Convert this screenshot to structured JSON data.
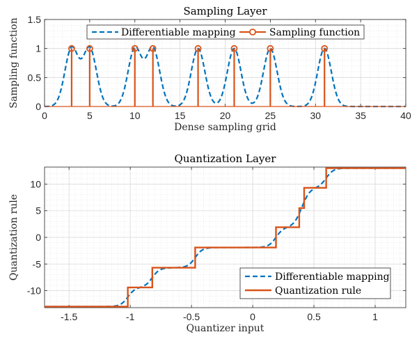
{
  "colors": {
    "blue": "#0072BD",
    "orange": "#D95319"
  },
  "chart_data": [
    {
      "type": "line",
      "title": "Sampling Layer",
      "xlabel": "Dense sampling grid",
      "ylabel": "Sampling function",
      "xlim": [
        0,
        40
      ],
      "ylim": [
        0,
        1.5
      ],
      "xticks": [
        0,
        5,
        10,
        15,
        20,
        25,
        30,
        35,
        40
      ],
      "xtick_labels": [
        "0",
        "5",
        "10",
        "15",
        "20",
        "25",
        "30",
        "35",
        "40"
      ],
      "yticks": [
        0,
        0.5,
        1,
        1.5
      ],
      "ytick_labels": [
        "0",
        "0.5",
        "1",
        "1.5"
      ],
      "grid": true,
      "legend_position": "top-center-horizontal",
      "legend": [
        "Differentiable mapping",
        "Sampling function"
      ],
      "series": [
        {
          "name": "Differentiable mapping",
          "style": "dashed",
          "kind": "gaussian-sum",
          "centers": [
            3,
            5,
            10,
            12,
            17,
            21,
            25,
            31
          ],
          "peak": 1,
          "sigma": 0.75
        },
        {
          "name": "Sampling function",
          "style": "stem",
          "x": [
            3,
            5,
            10,
            12,
            17,
            21,
            25,
            31
          ],
          "y": [
            1,
            1,
            1,
            1,
            1,
            1,
            1,
            1
          ]
        }
      ]
    },
    {
      "type": "line",
      "title": "Quantization Layer",
      "xlabel": "Quantizer input",
      "ylabel": "Quantization rule",
      "xlim": [
        -1.7,
        1.25
      ],
      "ylim": [
        -13.2,
        13.2
      ],
      "xticks": [
        -1.5,
        -1,
        -0.5,
        0,
        0.5,
        1
      ],
      "xtick_labels": [
        "-1.5",
        "-1",
        "-0.5",
        "0",
        "0.5",
        "1"
      ],
      "yticks": [
        -10,
        -5,
        0,
        5,
        10
      ],
      "ytick_labels": [
        "-10",
        "-5",
        "0",
        "5",
        "10"
      ],
      "grid": true,
      "legend_position": "bottom-right",
      "legend": [
        "Differentiable mapping",
        "Quantization rule"
      ],
      "series": [
        {
          "name": "Differentiable mapping",
          "style": "dashed",
          "kind": "sigmoid-sum",
          "base": -13,
          "steps": [
            [
              -1.02,
              3.6
            ],
            [
              -0.82,
              3.7
            ],
            [
              -0.47,
              3.8
            ],
            [
              0.19,
              3.8
            ],
            [
              0.38,
              3.6
            ],
            [
              0.42,
              3.8
            ],
            [
              0.6,
              3.7
            ]
          ]
        },
        {
          "name": "Quantization rule",
          "style": "step",
          "breaks": [
            -1.02,
            -0.82,
            -0.47,
            0.19,
            0.38,
            0.42,
            0.6
          ],
          "levels": [
            -13,
            -9.4,
            -5.7,
            -1.9,
            1.9,
            5.5,
            9.3,
            13
          ]
        }
      ]
    }
  ]
}
